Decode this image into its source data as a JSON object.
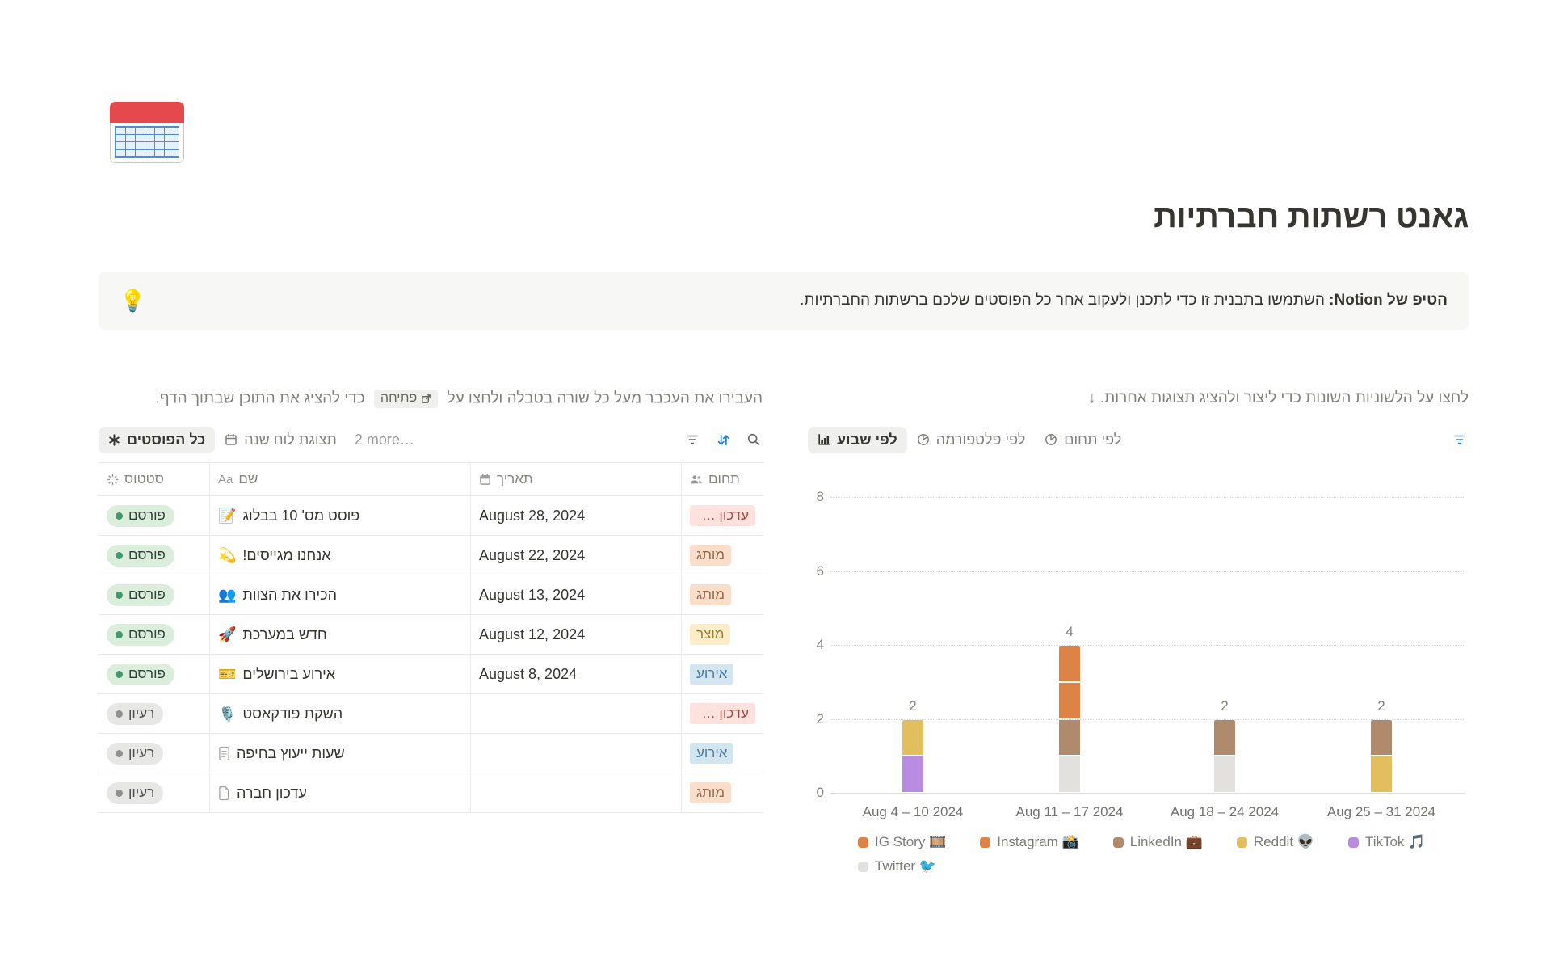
{
  "page": {
    "icon": "🗓️",
    "title": "גאנט רשתות חברתיות",
    "callout": {
      "icon": "💡",
      "bold": "הטיפ של Notion:",
      "text": " השתמשו בתבנית זו כדי לתכנן ולעקוב אחר כל הפוסטים שלכם ברשתות החברתיות."
    }
  },
  "left_panel": {
    "instruction": {
      "before": "העבירו את העכבר מעל כל שורה בטבלה ולחצו על",
      "chip": "פתיחה",
      "after": "כדי להציג את התוכן שבתוך הדף."
    },
    "tabs": [
      {
        "label": "כל הפוסטים",
        "active": true,
        "icon": "asterisk-view-icon"
      },
      {
        "label": "תצוגת לוח שנה",
        "active": false,
        "icon": "calendar-view-icon"
      },
      {
        "label": "2 more…",
        "active": false
      }
    ],
    "table": {
      "headers": [
        {
          "label": "סטטוס",
          "icon": "status-spinner-icon"
        },
        {
          "label": "שם",
          "icon": "Aa"
        },
        {
          "label": "תאריך",
          "icon": "calendar-icon"
        },
        {
          "label": "תחום",
          "icon": "people-icon"
        }
      ],
      "rows": [
        {
          "status": "פורסם",
          "status_type": "green",
          "icon": "📝",
          "icon_name": "memo-icon",
          "name": "פוסט מס' 10 בבלוג",
          "date": "August 28, 2024",
          "category": "עדכון מערכתי",
          "category_color": "red"
        },
        {
          "status": "פורסם",
          "status_type": "green",
          "icon": "💫",
          "icon_name": "dizzy-icon",
          "name": "אנחנו מגייסים!",
          "date": "August 22, 2024",
          "category": "מותג",
          "category_color": "orange"
        },
        {
          "status": "פורסם",
          "status_type": "green",
          "icon": "👥",
          "icon_name": "busts-icon",
          "name": "הכירו את הצוות",
          "date": "August 13, 2024",
          "category": "מותג",
          "category_color": "orange"
        },
        {
          "status": "פורסם",
          "status_type": "green",
          "icon": "🚀",
          "icon_name": "rocket-icon",
          "name": "חדש במערכת",
          "date": "August 12, 2024",
          "category": "מוצר",
          "category_color": "yellow"
        },
        {
          "status": "פורסם",
          "status_type": "green",
          "icon": "🎫",
          "icon_name": "ticket-icon",
          "name": "אירוע בירושלים",
          "date": "August 8, 2024",
          "category": "אירוע",
          "category_color": "blue"
        },
        {
          "status": "רעיון",
          "status_type": "gray",
          "icon": "🎙️",
          "icon_name": "microphone-icon",
          "name": "השקת פודקאסט",
          "date": "",
          "category": "עדכון מערכתי",
          "category_color": "red"
        },
        {
          "status": "רעיון",
          "status_type": "gray",
          "icon": "page-lines",
          "icon_name": "page-lines-icon",
          "name": "שעות ייעוץ בחיפה",
          "date": "",
          "category": "אירוע",
          "category_color": "blue"
        },
        {
          "status": "רעיון",
          "status_type": "gray",
          "icon": "page-blank",
          "icon_name": "page-blank-icon",
          "name": "עדכון חברה",
          "date": "",
          "category": "מותג",
          "category_color": "orange"
        }
      ]
    }
  },
  "right_panel": {
    "instruction": "לחצו על הלשוניות השונות כדי ליצור ולהציג תצוגות אחרות. ↓",
    "tabs": [
      {
        "label": "לפי שבוע",
        "active": true,
        "icon": "bar-chart-icon"
      },
      {
        "label": "לפי פלטפורמה",
        "active": false,
        "icon": "pie-chart-icon"
      },
      {
        "label": "לפי תחום",
        "active": false,
        "icon": "pie-chart-icon"
      }
    ]
  },
  "accent_blue": "#2383E2",
  "chart_data": {
    "type": "bar",
    "stacked": true,
    "title": "",
    "xlabel": "",
    "ylabel": "",
    "ylim": [
      0,
      8
    ],
    "yticks": [
      0,
      2,
      4,
      6,
      8
    ],
    "grid": "dotted-horizontal",
    "legend_position": "bottom",
    "categories": [
      "Aug 4 – 10 2024",
      "Aug 11 – 17 2024",
      "Aug 18 – 24 2024",
      "Aug 25 – 31 2024"
    ],
    "totals": [
      2,
      4,
      2,
      2
    ],
    "colors": {
      "orange": "#DD8345",
      "brown": "#AF8A6C",
      "yellow": "#E2BE5F",
      "purple": "#B98BE3",
      "gray": "#E2E1DE"
    },
    "series": [
      {
        "name": "IG Story 🎞️",
        "color_key": "orange",
        "values": [
          0,
          1,
          0,
          0
        ]
      },
      {
        "name": "Instagram 📸",
        "color_key": "orange",
        "values": [
          0,
          1,
          0,
          0
        ]
      },
      {
        "name": "LinkedIn 💼",
        "color_key": "brown",
        "values": [
          0,
          1,
          1,
          1
        ]
      },
      {
        "name": "Reddit 👽",
        "color_key": "yellow",
        "values": [
          1,
          0,
          0,
          1
        ]
      },
      {
        "name": "TikTok 🎵",
        "color_key": "purple",
        "values": [
          1,
          0,
          0,
          0
        ]
      },
      {
        "name": "Twitter 🐦",
        "color_key": "gray",
        "values": [
          0,
          1,
          1,
          0
        ]
      }
    ],
    "stacks": [
      [
        {
          "name": "TikTok 🎵",
          "color_key": "purple",
          "value": 1
        },
        {
          "name": "Reddit 👽",
          "color_key": "yellow",
          "value": 1
        }
      ],
      [
        {
          "name": "Twitter 🐦",
          "color_key": "gray",
          "value": 1
        },
        {
          "name": "LinkedIn 💼",
          "color_key": "brown",
          "value": 1
        },
        {
          "name": "Instagram 📸",
          "color_key": "orange",
          "value": 1
        },
        {
          "name": "IG Story 🎞️",
          "color_key": "orange",
          "value": 1
        }
      ],
      [
        {
          "name": "Twitter 🐦",
          "color_key": "gray",
          "value": 1
        },
        {
          "name": "LinkedIn 💼",
          "color_key": "brown",
          "value": 1
        }
      ],
      [
        {
          "name": "Reddit 👽",
          "color_key": "yellow",
          "value": 1
        },
        {
          "name": "LinkedIn 💼",
          "color_key": "brown",
          "value": 1
        }
      ]
    ],
    "legend": [
      {
        "label": "IG Story 🎞️",
        "color_key": "orange"
      },
      {
        "label": "Instagram 📸",
        "color_key": "orange"
      },
      {
        "label": "LinkedIn 💼",
        "color_key": "brown"
      },
      {
        "label": "Reddit 👽",
        "color_key": "yellow"
      },
      {
        "label": "TikTok 🎵",
        "color_key": "purple"
      },
      {
        "label": "Twitter 🐦",
        "color_key": "gray"
      }
    ]
  }
}
